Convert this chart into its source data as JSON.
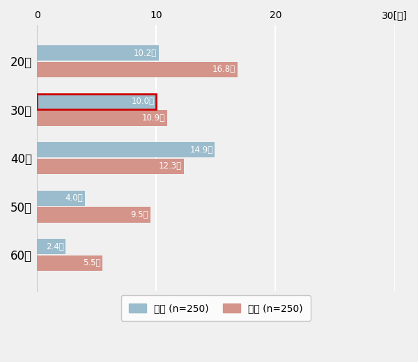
{
  "categories": [
    "20代",
    "30代",
    "40代",
    "50代",
    "60代"
  ],
  "male_values": [
    10.2,
    10.0,
    14.9,
    4.0,
    2.4
  ],
  "female_values": [
    16.8,
    10.9,
    12.3,
    9.5,
    5.5
  ],
  "male_color": "#9bbccc",
  "female_color": "#d4948a",
  "male_label": "男性 (n=250)",
  "female_label": "女性 (n=250)",
  "xlim": [
    0,
    30
  ],
  "xticks": [
    0,
    10,
    20,
    30
  ],
  "bar_height": 0.32,
  "highlight_category": "30代",
  "highlight_color": "#cc0000",
  "background_color": "#f0f0f0",
  "plot_bg_color": "#f0f0f0",
  "label_suffix": "回",
  "x_last_label": "30[回]",
  "grid_color": "#ffffff",
  "spine_color": "#cccccc"
}
